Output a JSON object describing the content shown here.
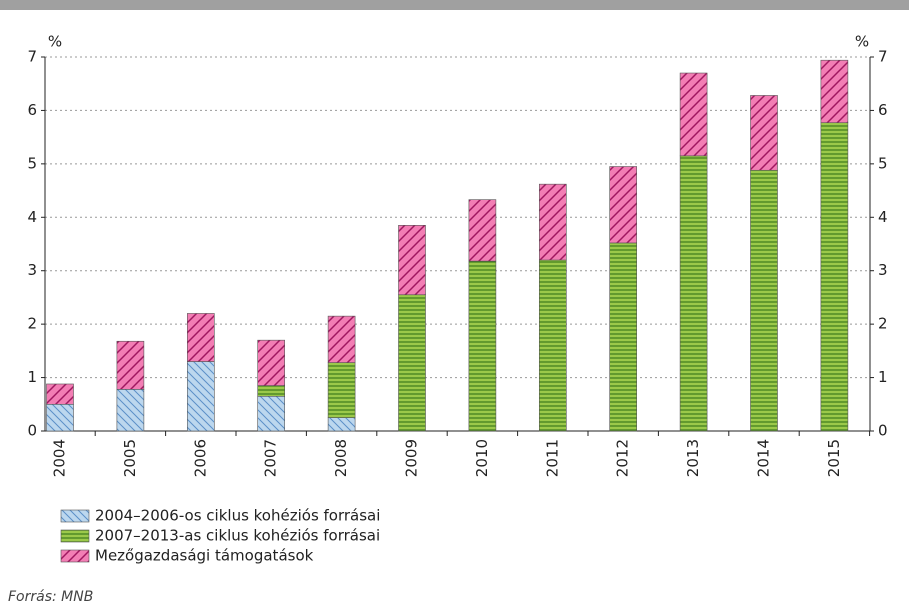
{
  "chart_data": {
    "type": "stacked_bar",
    "y_label": "%",
    "y2_label": "%",
    "categories": [
      "2004",
      "2005",
      "2006",
      "2007",
      "2008",
      "2009",
      "2010",
      "2011",
      "2012",
      "2013",
      "2014",
      "2015"
    ],
    "series": [
      {
        "name": "2004–2006-os ciklus kohéziós forrásai",
        "color": "#bcd7ee",
        "pattern": "hatch-back",
        "values": [
          0.5,
          0.78,
          1.3,
          0.65,
          0.25,
          0,
          0,
          0,
          0,
          0,
          0,
          0
        ]
      },
      {
        "name": "2007–2013-as ciklus kohéziós forrásai",
        "color": "#9bc94a",
        "pattern": "horizontal",
        "values": [
          0,
          0,
          0,
          0.2,
          1.03,
          2.55,
          3.18,
          3.2,
          3.52,
          5.15,
          4.88,
          5.77
        ]
      },
      {
        "name": "Mezőgazdasági támogatások",
        "color": "#f27eb4",
        "pattern": "hatch-forward",
        "values": [
          0.38,
          0.9,
          0.9,
          0.85,
          0.87,
          1.3,
          1.15,
          1.42,
          1.43,
          1.55,
          1.4,
          1.17
        ]
      }
    ],
    "ylim": [
      0,
      7
    ],
    "yticks": [
      0,
      1,
      2,
      3,
      4,
      5,
      6,
      7
    ],
    "y2lim": [
      0,
      7
    ],
    "y2ticks": [
      0,
      1,
      2,
      3,
      4,
      5,
      6,
      7
    ],
    "grid": true,
    "source": "Forrás: MNB"
  }
}
